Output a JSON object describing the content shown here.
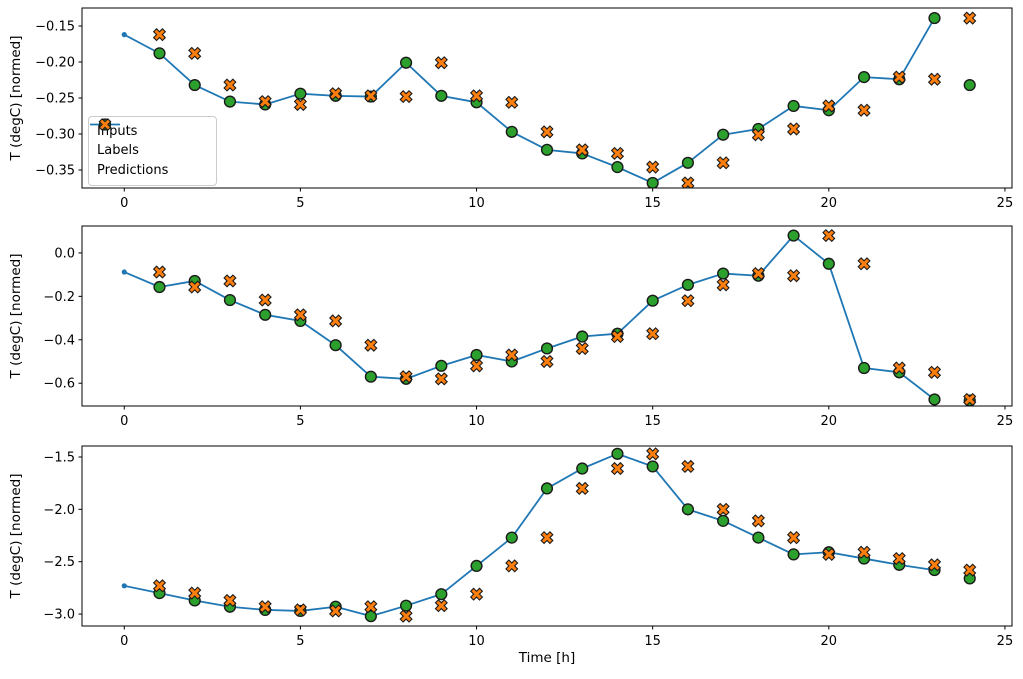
{
  "figure": {
    "ylabel": "T (degC) [normed]",
    "xlabel": "Time [h]",
    "colors": {
      "inputs": "#1f77b4",
      "labels": "#2ca02c",
      "predictions": "#ff7f0e",
      "marker_edge": "#1a1a1a",
      "axes_edge": "#000000",
      "legend_border": "#cccccc"
    },
    "legend": {
      "items": [
        {
          "label": "Inputs",
          "marker": "line-dot",
          "color": "#1f77b4"
        },
        {
          "label": "Labels",
          "marker": "circle",
          "color": "#2ca02c"
        },
        {
          "label": "Predictions",
          "marker": "x",
          "color": "#ff7f0e"
        }
      ]
    }
  },
  "chart_data": [
    {
      "type": "line",
      "title": "",
      "xlabel": "",
      "ylabel": "T (degC) [normed]",
      "xlim": [
        -1.2,
        25.2
      ],
      "ylim": [
        -0.375,
        -0.125
      ],
      "xticks": [
        0,
        5,
        10,
        15,
        20,
        25
      ],
      "xtick_labels": [
        "0",
        "5",
        "10",
        "15",
        "20",
        "25"
      ],
      "yticks": [
        -0.15,
        -0.2,
        -0.25,
        -0.3,
        -0.35
      ],
      "ytick_labels": [
        "−0.15",
        "−0.20",
        "−0.25",
        "−0.30",
        "−0.35"
      ],
      "grid": false,
      "legend": true,
      "legend_position": "center left",
      "series": [
        {
          "name": "Inputs",
          "type": "line",
          "marker": "dot",
          "color": "#1f77b4",
          "x": [
            0,
            1,
            2,
            3,
            4,
            5,
            6,
            7,
            8,
            9,
            10,
            11,
            12,
            13,
            14,
            15,
            16,
            17,
            18,
            19,
            20,
            21,
            22,
            23
          ],
          "y": [
            -0.162,
            -0.188,
            -0.232,
            -0.255,
            -0.259,
            -0.244,
            -0.247,
            -0.248,
            -0.201,
            -0.247,
            -0.256,
            -0.297,
            -0.322,
            -0.327,
            -0.346,
            -0.368,
            -0.34,
            -0.301,
            -0.293,
            -0.261,
            -0.267,
            -0.221,
            -0.224,
            -0.139
          ]
        },
        {
          "name": "Labels",
          "type": "scatter",
          "marker": "circle",
          "color": "#2ca02c",
          "x": [
            1,
            2,
            3,
            4,
            5,
            6,
            7,
            8,
            9,
            10,
            11,
            12,
            13,
            14,
            15,
            16,
            17,
            18,
            19,
            20,
            21,
            22,
            23,
            24
          ],
          "y": [
            -0.188,
            -0.232,
            -0.255,
            -0.259,
            -0.244,
            -0.247,
            -0.248,
            -0.201,
            -0.247,
            -0.256,
            -0.297,
            -0.322,
            -0.327,
            -0.346,
            -0.368,
            -0.34,
            -0.301,
            -0.293,
            -0.261,
            -0.267,
            -0.221,
            -0.224,
            -0.139,
            -0.232
          ]
        },
        {
          "name": "Predictions",
          "type": "scatter",
          "marker": "X",
          "color": "#ff7f0e",
          "x": [
            1,
            2,
            3,
            4,
            5,
            6,
            7,
            8,
            9,
            10,
            11,
            12,
            13,
            14,
            15,
            16,
            17,
            18,
            19,
            20,
            21,
            22,
            23,
            24
          ],
          "y": [
            -0.162,
            -0.188,
            -0.232,
            -0.255,
            -0.259,
            -0.244,
            -0.247,
            -0.248,
            -0.201,
            -0.247,
            -0.256,
            -0.297,
            -0.322,
            -0.327,
            -0.346,
            -0.368,
            -0.34,
            -0.301,
            -0.293,
            -0.261,
            -0.267,
            -0.221,
            -0.224,
            -0.139
          ]
        }
      ]
    },
    {
      "type": "line",
      "title": "",
      "xlabel": "",
      "ylabel": "T (degC) [normed]",
      "xlim": [
        -1.2,
        25.2
      ],
      "ylim": [
        -0.705,
        0.124
      ],
      "xticks": [
        0,
        5,
        10,
        15,
        20,
        25
      ],
      "xtick_labels": [
        "0",
        "5",
        "10",
        "15",
        "20",
        "25"
      ],
      "yticks": [
        0.0,
        -0.2,
        -0.4,
        -0.6
      ],
      "ytick_labels": [
        "0.0",
        "−0.2",
        "−0.4",
        "−0.6"
      ],
      "grid": false,
      "legend": false,
      "series": [
        {
          "name": "Inputs",
          "type": "line",
          "marker": "dot",
          "color": "#1f77b4",
          "x": [
            0,
            1,
            2,
            3,
            4,
            5,
            6,
            7,
            8,
            9,
            10,
            11,
            12,
            13,
            14,
            15,
            16,
            17,
            18,
            19,
            20,
            21,
            22,
            23
          ],
          "y": [
            -0.088,
            -0.157,
            -0.129,
            -0.217,
            -0.285,
            -0.313,
            -0.425,
            -0.57,
            -0.58,
            -0.52,
            -0.47,
            -0.5,
            -0.44,
            -0.385,
            -0.372,
            -0.22,
            -0.147,
            -0.095,
            -0.105,
            0.08,
            -0.05,
            -0.53,
            -0.55,
            -0.675
          ]
        },
        {
          "name": "Labels",
          "type": "scatter",
          "marker": "circle",
          "color": "#2ca02c",
          "x": [
            1,
            2,
            3,
            4,
            5,
            6,
            7,
            8,
            9,
            10,
            11,
            12,
            13,
            14,
            15,
            16,
            17,
            18,
            19,
            20,
            21,
            22,
            23,
            24
          ],
          "y": [
            -0.157,
            -0.129,
            -0.217,
            -0.285,
            -0.313,
            -0.425,
            -0.57,
            -0.58,
            -0.52,
            -0.47,
            -0.5,
            -0.44,
            -0.385,
            -0.372,
            -0.22,
            -0.147,
            -0.095,
            -0.105,
            0.08,
            -0.05,
            -0.53,
            -0.55,
            -0.675,
            -0.68
          ]
        },
        {
          "name": "Predictions",
          "type": "scatter",
          "marker": "X",
          "color": "#ff7f0e",
          "x": [
            1,
            2,
            3,
            4,
            5,
            6,
            7,
            8,
            9,
            10,
            11,
            12,
            13,
            14,
            15,
            16,
            17,
            18,
            19,
            20,
            21,
            22,
            23,
            24
          ],
          "y": [
            -0.088,
            -0.157,
            -0.129,
            -0.217,
            -0.285,
            -0.313,
            -0.425,
            -0.57,
            -0.58,
            -0.52,
            -0.47,
            -0.5,
            -0.44,
            -0.385,
            -0.372,
            -0.22,
            -0.147,
            -0.095,
            -0.105,
            0.08,
            -0.05,
            -0.53,
            -0.55,
            -0.675
          ]
        }
      ]
    },
    {
      "type": "line",
      "title": "",
      "xlabel": "Time [h]",
      "ylabel": "T (degC) [normed]",
      "xlim": [
        -1.2,
        25.2
      ],
      "ylim": [
        -3.114,
        -1.395
      ],
      "xticks": [
        0,
        5,
        10,
        15,
        20,
        25
      ],
      "xtick_labels": [
        "0",
        "5",
        "10",
        "15",
        "20",
        "25"
      ],
      "yticks": [
        -1.5,
        -2.0,
        -2.5,
        -3.0
      ],
      "ytick_labels": [
        "−1.5",
        "−2.0",
        "−2.5",
        "−3.0"
      ],
      "grid": false,
      "legend": false,
      "series": [
        {
          "name": "Inputs",
          "type": "line",
          "marker": "dot",
          "color": "#1f77b4",
          "x": [
            0,
            1,
            2,
            3,
            4,
            5,
            6,
            7,
            8,
            9,
            10,
            11,
            12,
            13,
            14,
            15,
            16,
            17,
            18,
            19,
            20,
            21,
            22,
            23
          ],
          "y": [
            -2.73,
            -2.8,
            -2.87,
            -2.93,
            -2.96,
            -2.97,
            -2.93,
            -3.02,
            -2.92,
            -2.81,
            -2.54,
            -2.27,
            -1.8,
            -1.61,
            -1.47,
            -1.59,
            -2.0,
            -2.11,
            -2.27,
            -2.43,
            -2.41,
            -2.47,
            -2.53,
            -2.58
          ]
        },
        {
          "name": "Labels",
          "type": "scatter",
          "marker": "circle",
          "color": "#2ca02c",
          "x": [
            1,
            2,
            3,
            4,
            5,
            6,
            7,
            8,
            9,
            10,
            11,
            12,
            13,
            14,
            15,
            16,
            17,
            18,
            19,
            20,
            21,
            22,
            23,
            24
          ],
          "y": [
            -2.8,
            -2.87,
            -2.93,
            -2.96,
            -2.97,
            -2.93,
            -3.02,
            -2.92,
            -2.81,
            -2.54,
            -2.27,
            -1.8,
            -1.61,
            -1.47,
            -1.59,
            -2.0,
            -2.11,
            -2.27,
            -2.43,
            -2.41,
            -2.47,
            -2.53,
            -2.58,
            -2.66
          ]
        },
        {
          "name": "Predictions",
          "type": "scatter",
          "marker": "X",
          "color": "#ff7f0e",
          "x": [
            1,
            2,
            3,
            4,
            5,
            6,
            7,
            8,
            9,
            10,
            11,
            12,
            13,
            14,
            15,
            16,
            17,
            18,
            19,
            20,
            21,
            22,
            23,
            24
          ],
          "y": [
            -2.73,
            -2.8,
            -2.87,
            -2.93,
            -2.96,
            -2.97,
            -2.93,
            -3.02,
            -2.92,
            -2.81,
            -2.54,
            -2.27,
            -1.8,
            -1.61,
            -1.47,
            -1.59,
            -2.0,
            -2.11,
            -2.27,
            -2.43,
            -2.41,
            -2.47,
            -2.53,
            -2.58
          ]
        }
      ]
    }
  ]
}
